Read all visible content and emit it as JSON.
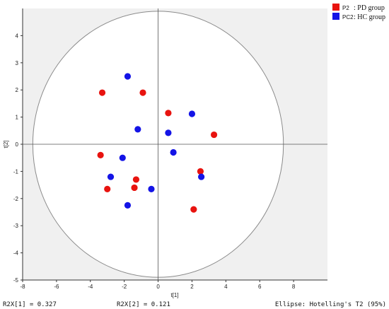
{
  "chart_data": {
    "type": "scatter",
    "title": "",
    "xlabel": "t[1]",
    "ylabel": "t[2]",
    "xlim": [
      -8,
      10
    ],
    "ylim": [
      -5,
      5
    ],
    "xticks": [
      -8,
      -6,
      -4,
      -2,
      0,
      2,
      4,
      6,
      8
    ],
    "yticks": [
      -5,
      -4,
      -3,
      -2,
      -1,
      0,
      1,
      2,
      3,
      4
    ],
    "ellipse": {
      "center": [
        0,
        0
      ],
      "rx": 7.4,
      "ry": 4.9,
      "label": "Ellipse: Hotelling's T2 (95%)"
    },
    "grid": false,
    "legend_position": "top-right",
    "footer": {
      "left": "R2X[1] = 0.327",
      "middle": "R2X[2] = 0.121",
      "right": "Ellipse: Hotelling's T2 (95%)"
    },
    "series": [
      {
        "name": "P2 : PD group",
        "legend_code": "P2",
        "legend_text": ": PD group",
        "color": "#e8130f",
        "points": [
          [
            -3.3,
            1.9
          ],
          [
            -0.9,
            1.9
          ],
          [
            0.6,
            1.15
          ],
          [
            3.3,
            0.35
          ],
          [
            -3.4,
            -0.4
          ],
          [
            2.5,
            -1.0
          ],
          [
            -1.3,
            -1.3
          ],
          [
            -3.0,
            -1.65
          ],
          [
            -1.4,
            -1.6
          ],
          [
            2.1,
            -2.4
          ]
        ]
      },
      {
        "name": "PC2 : HC group",
        "legend_code": "PC2",
        "legend_text": ": HC group",
        "color": "#1414e6",
        "points": [
          [
            -1.8,
            2.5
          ],
          [
            2.0,
            1.12
          ],
          [
            -1.2,
            0.55
          ],
          [
            0.6,
            0.42
          ],
          [
            0.9,
            -0.3
          ],
          [
            -2.1,
            -0.5
          ],
          [
            -2.8,
            -1.2
          ],
          [
            2.55,
            -1.2
          ],
          [
            -0.4,
            -1.65
          ],
          [
            -1.8,
            -2.25
          ]
        ]
      }
    ]
  }
}
